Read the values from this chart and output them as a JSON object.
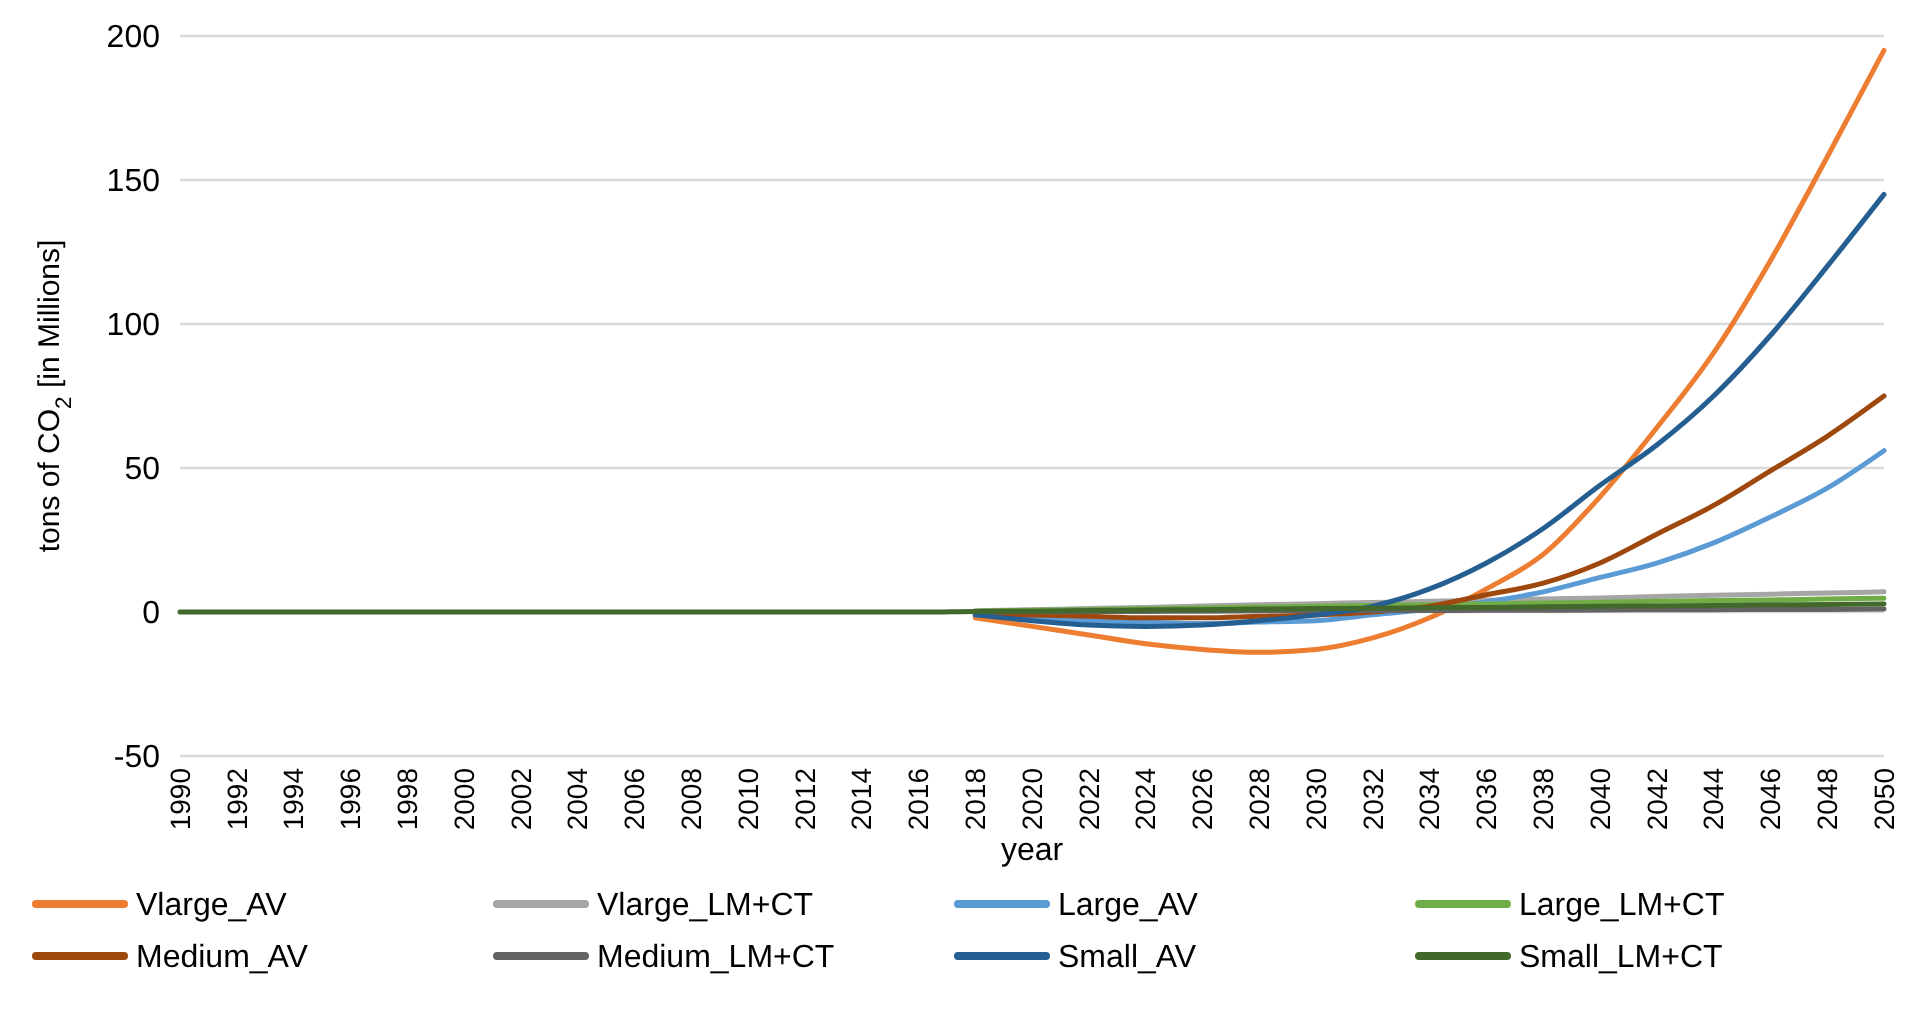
{
  "chart_data": {
    "type": "line",
    "xlabel": "year",
    "ylabel": "tons of CO$_{2}$ [in Millions]",
    "x": [
      1990,
      1992,
      1994,
      1996,
      1998,
      2000,
      2002,
      2004,
      2006,
      2008,
      2010,
      2012,
      2014,
      2016,
      2018,
      2020,
      2022,
      2024,
      2026,
      2028,
      2030,
      2032,
      2034,
      2036,
      2038,
      2040,
      2042,
      2044,
      2046,
      2048,
      2050
    ],
    "xlim": [
      1990,
      2050
    ],
    "xticks": [
      1990,
      1992,
      1994,
      1996,
      1998,
      2000,
      2002,
      2004,
      2006,
      2008,
      2010,
      2012,
      2014,
      2016,
      2018,
      2020,
      2022,
      2024,
      2026,
      2028,
      2030,
      2032,
      2034,
      2036,
      2038,
      2040,
      2042,
      2044,
      2046,
      2048,
      2050
    ],
    "ylim": [
      -50,
      200
    ],
    "yticks": [
      -50,
      0,
      50,
      100,
      150,
      200
    ],
    "grid": "y",
    "legend": "bottom",
    "marker": "none",
    "line_style": "solid",
    "series": [
      {
        "name": "Vlarge_AV",
        "color": "#ed7d31",
        "values": [
          null,
          null,
          null,
          null,
          null,
          null,
          null,
          null,
          null,
          null,
          null,
          null,
          null,
          null,
          -2,
          -5,
          -8,
          -11,
          -13,
          -14,
          -13,
          -9,
          -2,
          8,
          20,
          40,
          64,
          90,
          122,
          158,
          195
        ]
      },
      {
        "name": "Vlarge_LM+CT",
        "color": "#a5a5a5",
        "values": [
          null,
          null,
          null,
          null,
          null,
          null,
          null,
          null,
          null,
          null,
          null,
          null,
          null,
          null,
          0.4,
          0.8,
          1.2,
          1.6,
          2.1,
          2.5,
          2.9,
          3.3,
          3.7,
          4.1,
          4.5,
          4.9,
          5.4,
          5.8,
          6.2,
          6.6,
          7
        ]
      },
      {
        "name": "Large_AV",
        "color": "#5b9bd5",
        "values": [
          null,
          null,
          null,
          null,
          null,
          null,
          null,
          null,
          null,
          null,
          null,
          null,
          null,
          null,
          -1,
          -2,
          -3,
          -3.5,
          -4,
          -3.5,
          -3,
          -1,
          1,
          3.5,
          7,
          12,
          17,
          24,
          33,
          43,
          56
        ]
      },
      {
        "name": "Large_LM+CT",
        "color": "#70ad47",
        "values": [
          null,
          null,
          null,
          null,
          null,
          null,
          null,
          null,
          null,
          null,
          null,
          null,
          null,
          null,
          0.3,
          0.6,
          0.8,
          1.1,
          1.4,
          1.7,
          2,
          2.3,
          2.5,
          2.8,
          3.1,
          3.4,
          3.7,
          4,
          4.2,
          4.5,
          4.8
        ]
      },
      {
        "name": "Medium_AV",
        "color": "#9e480e",
        "values": [
          null,
          null,
          null,
          null,
          null,
          null,
          null,
          null,
          null,
          null,
          null,
          null,
          null,
          null,
          -0.5,
          -1,
          -1.5,
          -2,
          -2,
          -1.5,
          -1,
          0,
          2,
          6,
          10,
          17,
          27,
          37,
          49,
          61,
          75
        ]
      },
      {
        "name": "Medium_LM+CT",
        "color": "#636363",
        "values": [
          null,
          null,
          null,
          null,
          null,
          null,
          null,
          null,
          null,
          null,
          null,
          null,
          null,
          null,
          0.1,
          0.1,
          0.2,
          0.2,
          0.3,
          0.4,
          0.4,
          0.5,
          0.5,
          0.6,
          0.6,
          0.7,
          0.8,
          0.8,
          0.9,
          0.9,
          1
        ]
      },
      {
        "name": "Small_AV",
        "color": "#255e91",
        "values": [
          null,
          null,
          null,
          null,
          null,
          null,
          null,
          null,
          null,
          null,
          null,
          null,
          null,
          null,
          -1,
          -3,
          -4.5,
          -5,
          -4.5,
          -3,
          -1,
          2,
          8,
          17,
          29,
          44,
          58,
          75,
          96,
          120,
          145
        ]
      },
      {
        "name": "Small_LM+CT",
        "color": "#43682b",
        "values": [
          0,
          0,
          0,
          0,
          0,
          0,
          0,
          0,
          0,
          0,
          0,
          0,
          0,
          0,
          0.2,
          0.3,
          0.5,
          0.7,
          0.8,
          1,
          1.2,
          1.3,
          1.5,
          1.6,
          1.8,
          2,
          2.1,
          2.3,
          2.5,
          2.6,
          2.8
        ]
      }
    ]
  }
}
